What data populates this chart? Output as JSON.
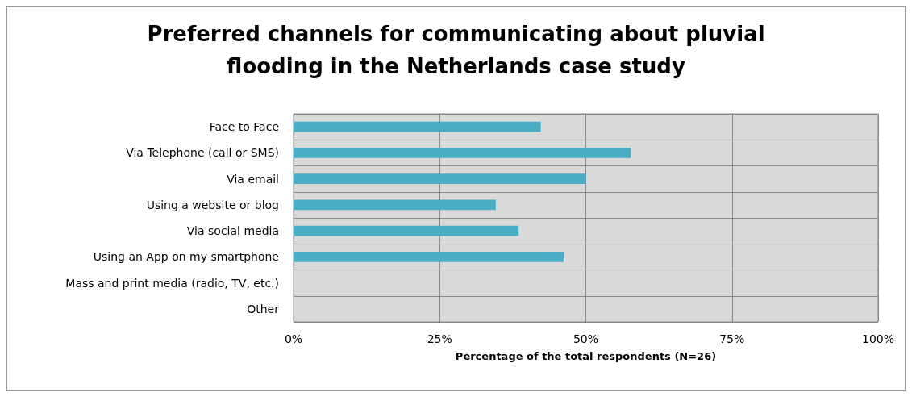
{
  "chart_data": {
    "type": "bar",
    "orientation": "horizontal",
    "title": "Preferred channels for communicating about pluvial\nflooding in the Netherlands case study",
    "xlabel": "Percentage of the total respondents (N=26)",
    "categories": [
      "Face to Face",
      "Via Telephone (call or SMS)",
      "Via email",
      "Using a website or blog",
      "Via social media",
      "Using an App on my smartphone",
      "Mass and print media (radio, TV, etc.)",
      "Other"
    ],
    "values": [
      42.3,
      57.7,
      50,
      34.6,
      38.5,
      46.2,
      0,
      0
    ],
    "color": "#4bacc6",
    "xlim": [
      0,
      100
    ],
    "xticks": [
      {
        "value": 0,
        "label": "0%"
      },
      {
        "value": 25,
        "label": "25%"
      },
      {
        "value": 50,
        "label": "50%"
      },
      {
        "value": 75,
        "label": "75%"
      },
      {
        "value": 100,
        "label": "100%"
      }
    ],
    "grid": true
  }
}
